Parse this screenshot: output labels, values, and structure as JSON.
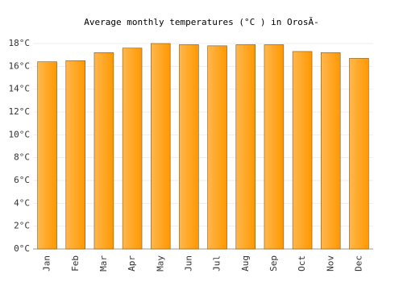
{
  "chart_data": {
    "type": "bar",
    "title": "Average monthly temperatures (°C ) in OrosĂ-",
    "categories": [
      "Jan",
      "Feb",
      "Mar",
      "Apr",
      "May",
      "Jun",
      "Jul",
      "Aug",
      "Sep",
      "Oct",
      "Nov",
      "Dec"
    ],
    "values": [
      16.4,
      16.5,
      17.2,
      17.6,
      18.0,
      17.9,
      17.8,
      17.9,
      17.9,
      17.3,
      17.2,
      16.7
    ],
    "color": "#ffa726",
    "ylim": [
      0,
      18
    ],
    "yticks": [
      {
        "value": 0,
        "label": "0°C"
      },
      {
        "value": 2,
        "label": "2°C"
      },
      {
        "value": 4,
        "label": "4°C"
      },
      {
        "value": 6,
        "label": "6°C"
      },
      {
        "value": 8,
        "label": "8°C"
      },
      {
        "value": 10,
        "label": "10°C"
      },
      {
        "value": 12,
        "label": "12°C"
      },
      {
        "value": 14,
        "label": "14°C"
      },
      {
        "value": 16,
        "label": "16°C"
      },
      {
        "value": 18,
        "label": "18°C"
      }
    ],
    "grid": true
  }
}
